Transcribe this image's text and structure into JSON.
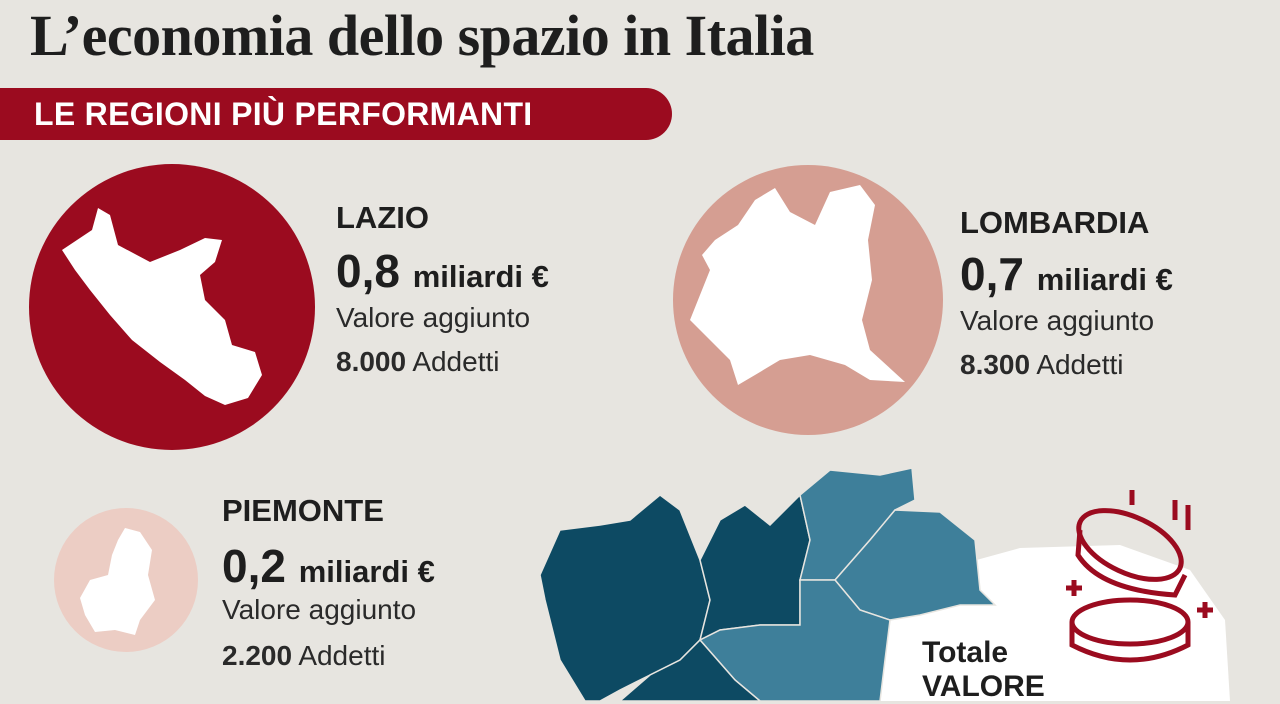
{
  "header": {
    "title": "L’economia dello spazio in Italia",
    "banner": "LE REGIONI PIÙ PERFORMANTI"
  },
  "regions": [
    {
      "name": "LAZIO",
      "value": "0,8",
      "unit": "miliardi €",
      "metric": "Valore aggiunto",
      "employees": "8.000",
      "employees_label": "Addetti"
    },
    {
      "name": "LOMBARDIA",
      "value": "0,7",
      "unit": "miliardi €",
      "metric": "Valore aggiunto",
      "employees": "8.300",
      "employees_label": "Addetti"
    },
    {
      "name": "PIEMONTE",
      "value": "0,2",
      "unit": "miliardi €",
      "metric": "Valore aggiunto",
      "employees": "2.200",
      "employees_label": "Addetti"
    }
  ],
  "total": {
    "line1": "Totale",
    "line2": "VALORE"
  }
}
